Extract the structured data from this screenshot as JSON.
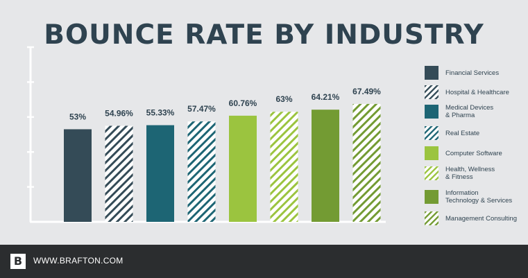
{
  "chart_data": {
    "type": "bar",
    "title": "BOUNCE RATE BY INDUSTRY",
    "xlabel": "",
    "ylabel": "",
    "ylim": [
      0,
      100
    ],
    "grid": false,
    "legend_position": "right",
    "categories": [
      "Financial Services",
      "Hospital & Healthcare",
      "Medical Devices\n& Pharma",
      "Real Estate",
      "Computer Software",
      "Health, Wellness\n& Fitness",
      "Information\nTechnology & Services",
      "Management Consulting"
    ],
    "values": [
      53,
      54.96,
      55.33,
      57.47,
      60.76,
      63,
      64.21,
      67.49
    ],
    "value_labels": [
      "53%",
      "54.96%",
      "55.33%",
      "57.47%",
      "60.76%",
      "63%",
      "64.21%",
      "67.49%"
    ],
    "colors": [
      "#344b57",
      "#344b57",
      "#1d6574",
      "#1d6574",
      "#9bc43f",
      "#9bc43f",
      "#739b33",
      "#739b33"
    ],
    "patterns": [
      "solid",
      "hatch",
      "solid",
      "hatch",
      "solid",
      "hatch",
      "solid",
      "hatch"
    ]
  },
  "footer": {
    "logo_letter": "B",
    "url": "WWW.BRAFTON.COM"
  }
}
